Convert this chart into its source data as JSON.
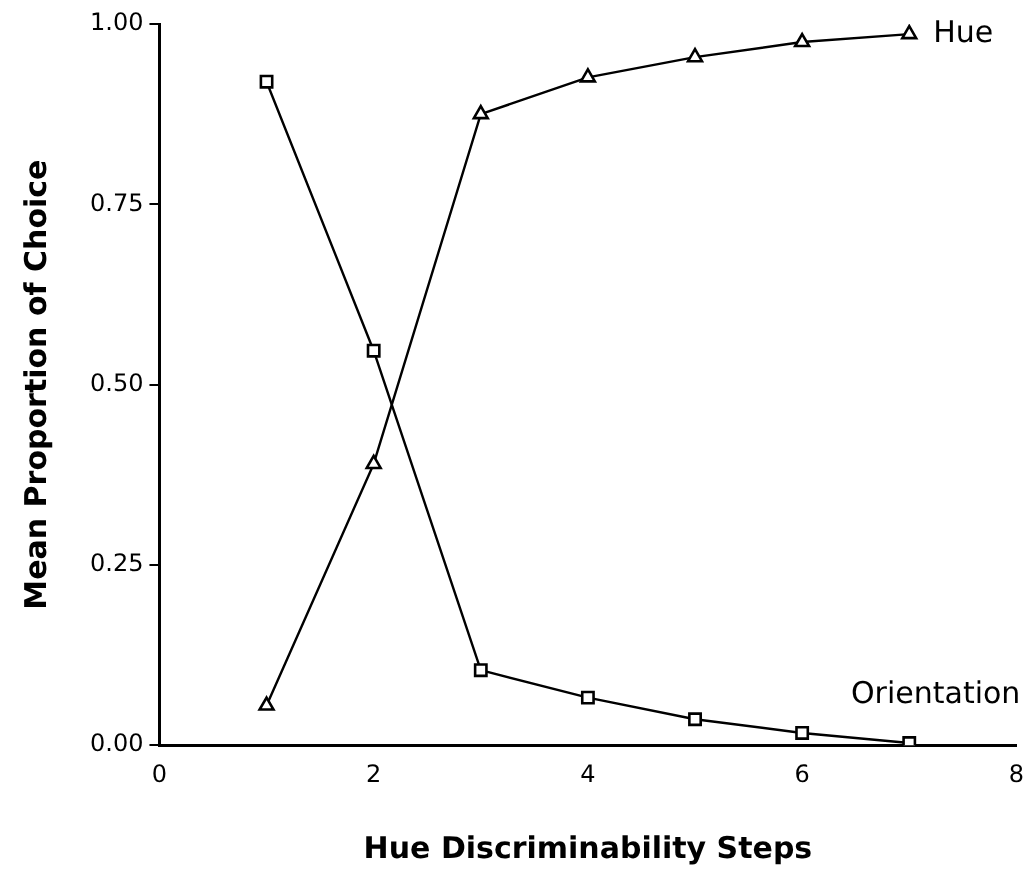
{
  "chart_data": {
    "type": "line",
    "xlabel": "Hue Discriminability Steps",
    "ylabel": "Mean Proportion of Choice",
    "x": [
      1,
      2,
      3,
      4,
      5,
      6,
      7
    ],
    "series": [
      {
        "name": "Hue",
        "color": "#000000",
        "marker": "triangle",
        "values": [
          0.055,
          0.39,
          0.875,
          0.926,
          0.954,
          0.975,
          0.986
        ]
      },
      {
        "name": "Orientation",
        "color": "#000000",
        "marker": "square",
        "values": [
          0.92,
          0.547,
          0.104,
          0.066,
          0.036,
          0.017,
          0.003
        ]
      }
    ],
    "xlim": [
      0,
      8
    ],
    "xticks": [
      0,
      2,
      4,
      6,
      8
    ],
    "ylim": [
      0,
      1
    ],
    "yticks": [
      {
        "value": 0,
        "label": "0.00"
      },
      {
        "value": 0.25,
        "label": "0.25"
      },
      {
        "value": 0.5,
        "label": "0.50"
      },
      {
        "value": 0.75,
        "label": "0.75"
      },
      {
        "value": 1,
        "label": "1.00"
      }
    ],
    "grid": false,
    "legend": false,
    "line_style": "solid"
  }
}
